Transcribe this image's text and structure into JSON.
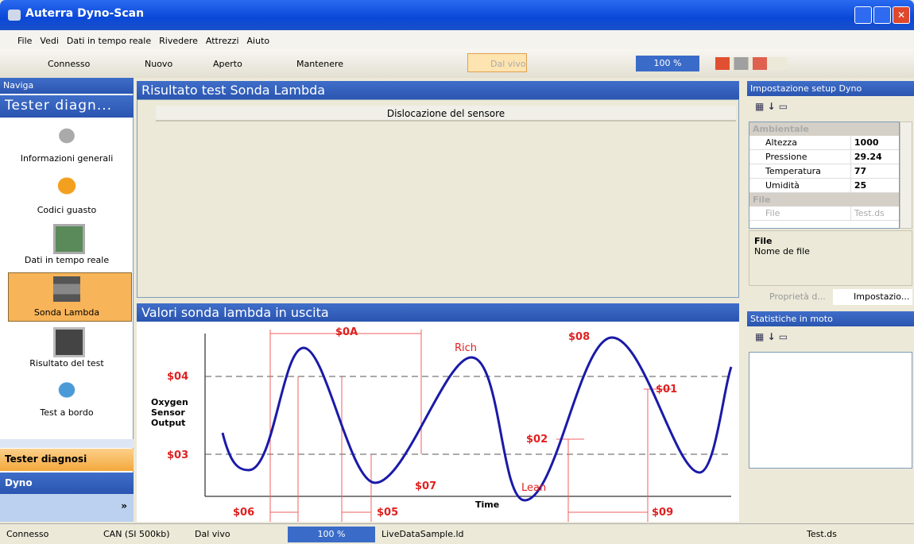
{
  "title_bar": {
    "title": "Auterra Dyno-Scan"
  },
  "menu": {
    "items": [
      "File",
      "Vedi",
      "Dati in tempo reale",
      "Rivedere",
      "Attrezzi",
      "Aiuto"
    ]
  },
  "toolbar": {
    "connect": "Connesso",
    "new": "Nuovo",
    "open": "Aperto",
    "keep": "Mantenere",
    "live": "Dal vivo",
    "zoom": "100 %"
  },
  "nav": {
    "header": "Naviga",
    "group_title": "Tester diagn...",
    "items": [
      "Informazioni generali",
      "Codici guasto",
      "Dati in tempo reale",
      "Sonda Lambda",
      "Risultato del test",
      "Test a bordo"
    ],
    "groups": [
      "Tester diagnosi",
      "Dyno"
    ]
  },
  "main": {
    "test_panel": {
      "title": "Risultato test Sonda Lambda",
      "column_header": "Dislocazione del sensore"
    },
    "diagram": {
      "title": "Valori sonda lambda in uscita",
      "labels": {
        "s0a": "$0A",
        "s08": "$08",
        "rich": "Rich",
        "s04": "$04",
        "s01": "$01",
        "y1": "Oxygen",
        "y2": "Sensor",
        "y3": "Output",
        "s02": "$02",
        "s03": "$03",
        "s07": "$07",
        "lean": "Lean",
        "s06": "$06",
        "s05": "$05",
        "time": "Time",
        "s09": "$09"
      }
    }
  },
  "settings": {
    "header": "Impostazione setup Dyno",
    "categories": [
      {
        "name": "Ambientale",
        "rows": [
          [
            "Altezza",
            1000
          ],
          [
            "Pressione",
            29.24
          ],
          [
            "Temperatura",
            77
          ],
          [
            "Umidità",
            25
          ]
        ]
      },
      {
        "name": "File",
        "rows": [
          [
            "File",
            "Test.ds"
          ]
        ]
      }
    ],
    "description_title": "File",
    "description": "Nome de file",
    "tabs": [
      "Proprietà d...",
      "Impostazio..."
    ]
  },
  "stats": {
    "header": "Statistiche in moto"
  },
  "status_bar": {
    "items": [
      "Connesso",
      "CAN (SI 500kb)",
      "Dal vivo",
      "100 %",
      "LiveDataSample.ld",
      "Test.ds"
    ]
  }
}
